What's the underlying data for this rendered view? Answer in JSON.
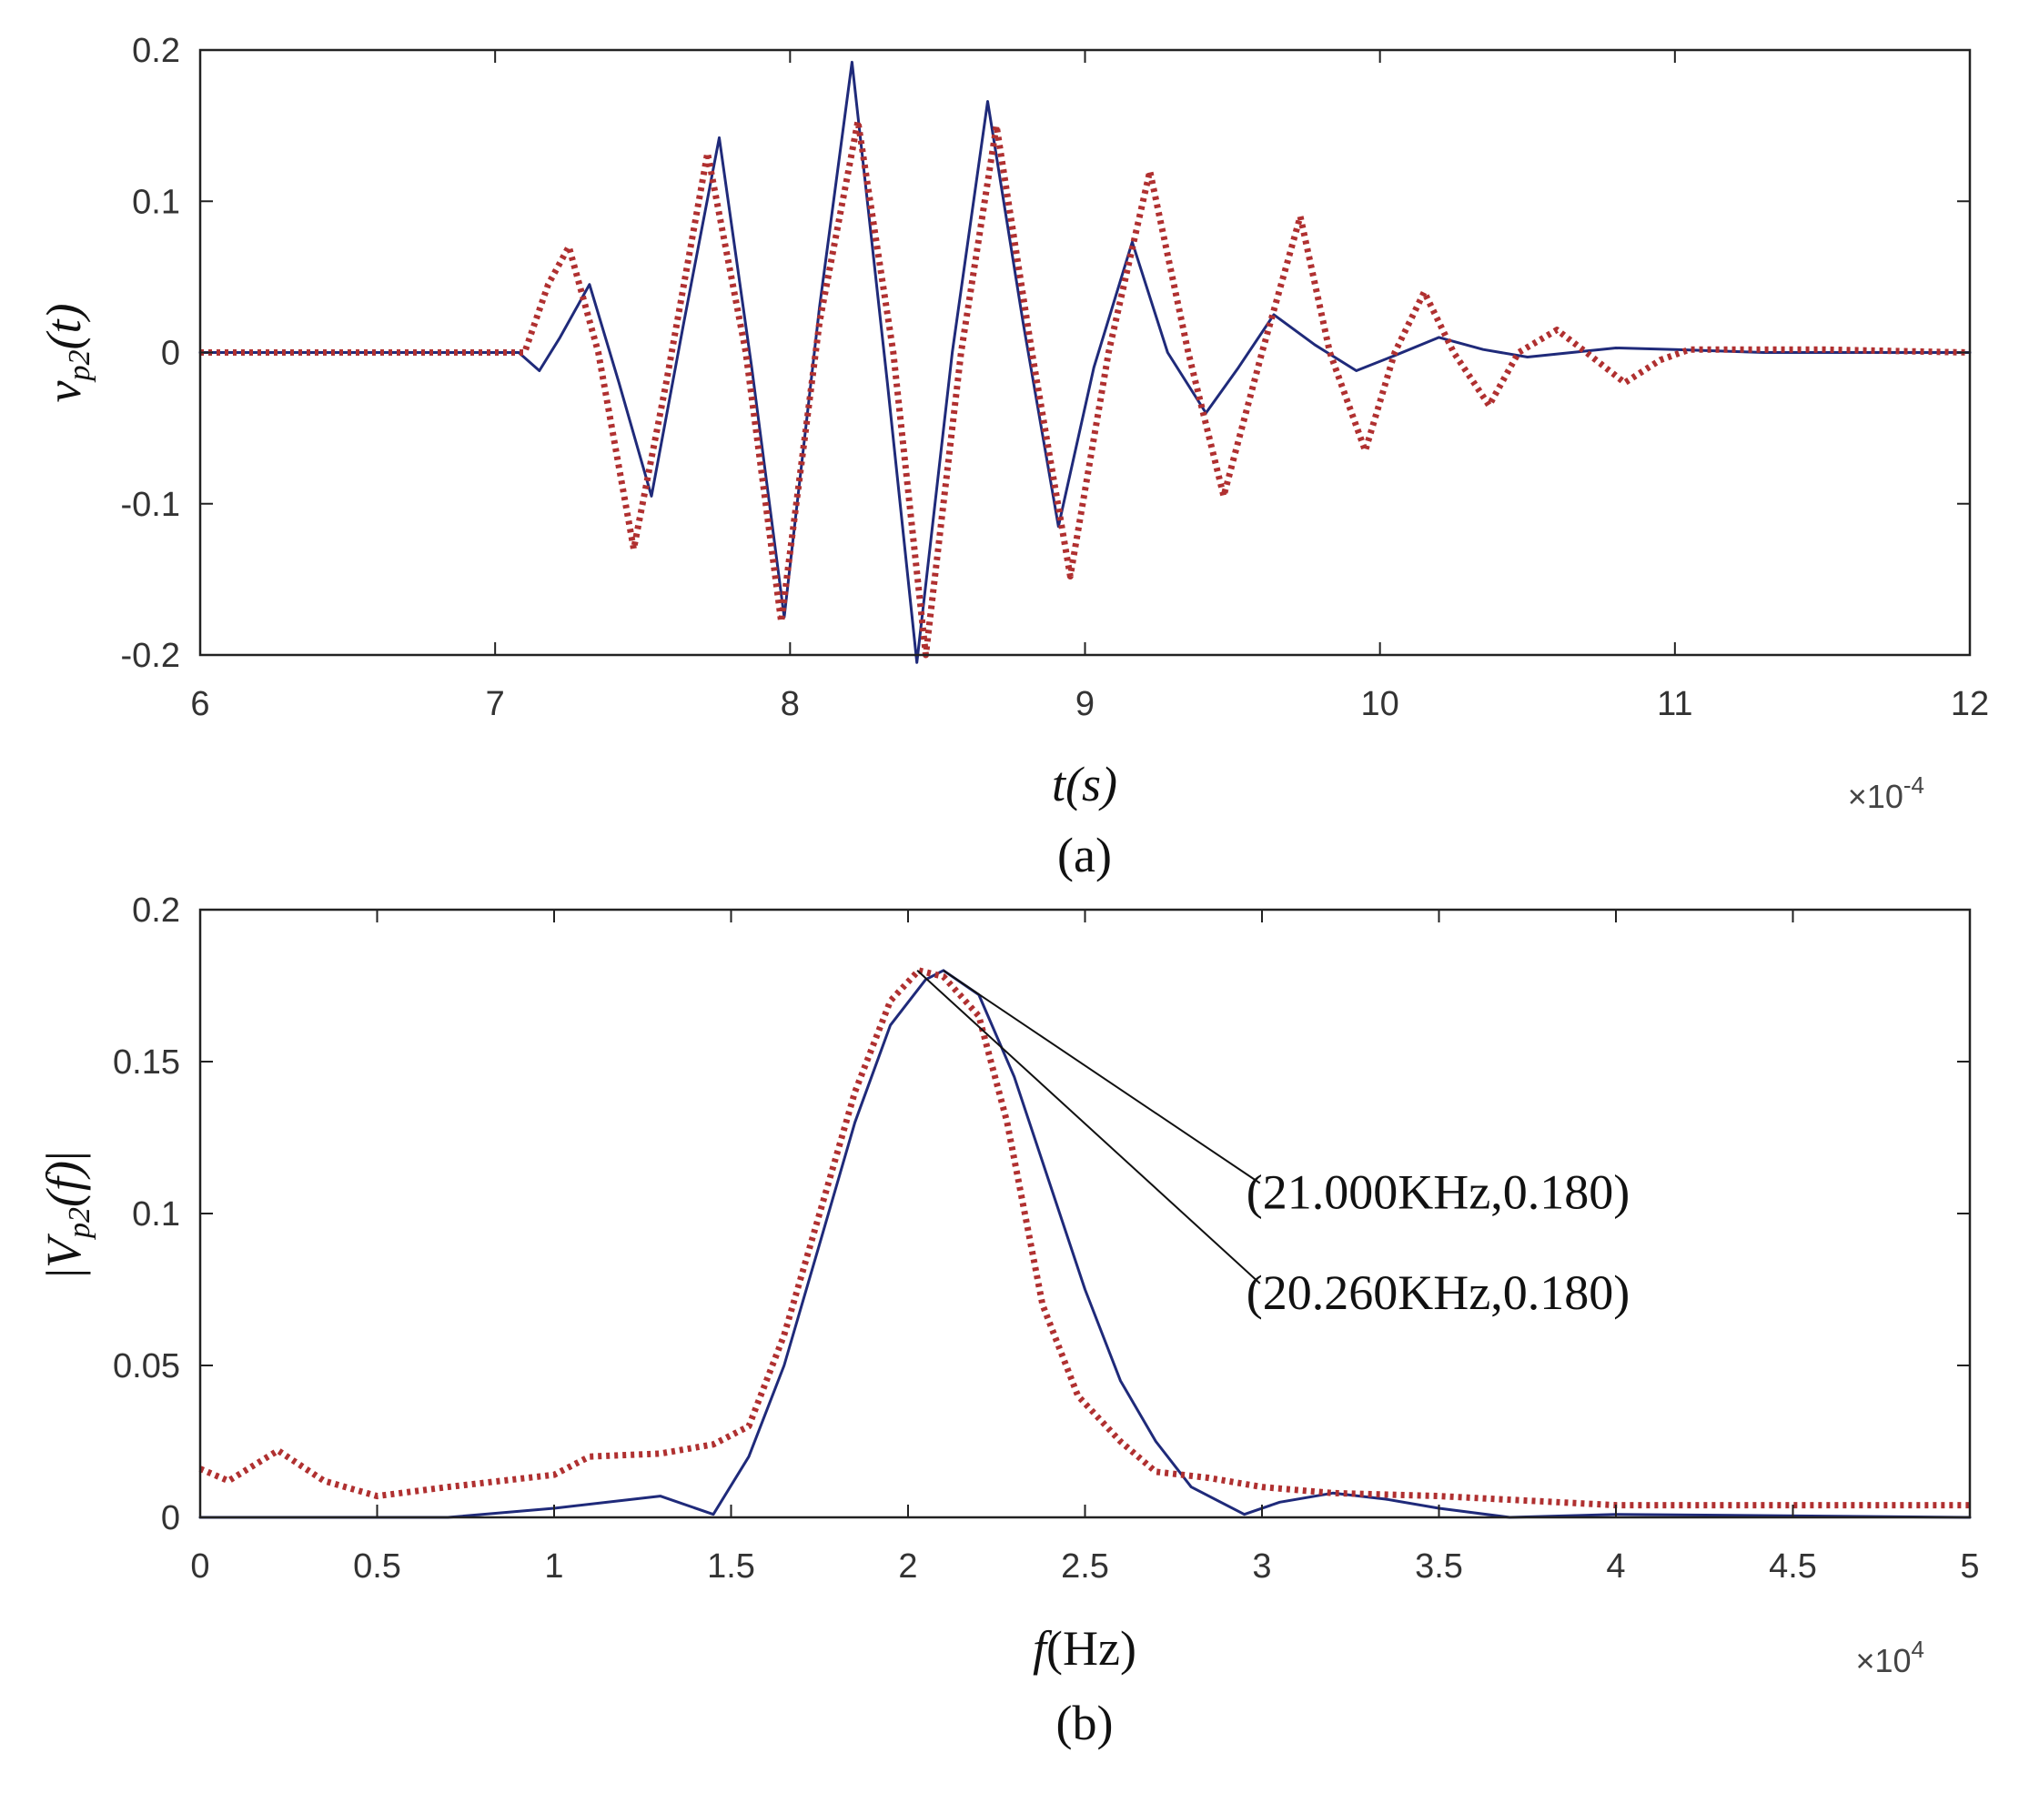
{
  "chart_data": [
    {
      "type": "line",
      "panel_label": "(a)",
      "xlabel": "t(s)",
      "ylabel": "v_p2(t)",
      "ylabel_base": "v",
      "ylabel_sub": "p2",
      "ylabel_arg": "(t)",
      "x_multiplier": "×10",
      "x_multiplier_exp": "-4",
      "xlim": [
        6,
        12
      ],
      "ylim": [
        -0.2,
        0.2
      ],
      "x_ticks": [
        6,
        7,
        8,
        9,
        10,
        11,
        12
      ],
      "x_tick_labels": [
        "6",
        "7",
        "8",
        "9",
        "10",
        "11",
        "12"
      ],
      "y_ticks": [
        -0.2,
        -0.1,
        0,
        0.1,
        0.2
      ],
      "y_tick_labels": [
        "-0.2",
        "-0.1",
        "0",
        "0.1",
        "0.2"
      ],
      "series": [
        {
          "name": "solid (blue)",
          "color": "#1f2a7a",
          "style": "solid",
          "points": [
            [
              6,
              0
            ],
            [
              7,
              0
            ],
            [
              7.08,
              0
            ],
            [
              7.15,
              -0.012
            ],
            [
              7.22,
              0.01
            ],
            [
              7.32,
              0.045
            ],
            [
              7.42,
              -0.02
            ],
            [
              7.53,
              -0.095
            ],
            [
              7.64,
              0.02
            ],
            [
              7.76,
              0.142
            ],
            [
              7.87,
              -0.01
            ],
            [
              7.98,
              -0.175
            ],
            [
              8.1,
              0.03
            ],
            [
              8.21,
              0.192
            ],
            [
              8.33,
              -0.02
            ],
            [
              8.43,
              -0.205
            ],
            [
              8.55,
              0.0
            ],
            [
              8.67,
              0.166
            ],
            [
              8.79,
              0.02
            ],
            [
              8.91,
              -0.115
            ],
            [
              9.03,
              -0.01
            ],
            [
              9.16,
              0.073
            ],
            [
              9.28,
              0.0
            ],
            [
              9.41,
              -0.04
            ],
            [
              9.52,
              -0.01
            ],
            [
              9.64,
              0.025
            ],
            [
              9.78,
              0.005
            ],
            [
              9.92,
              -0.012
            ],
            [
              10.05,
              -0.002
            ],
            [
              10.2,
              0.01
            ],
            [
              10.35,
              0.002
            ],
            [
              10.5,
              -0.003
            ],
            [
              10.8,
              0.003
            ],
            [
              11.0,
              0.002
            ],
            [
              11.3,
              0.0
            ],
            [
              12,
              0
            ]
          ]
        },
        {
          "name": "dotted (red)",
          "color": "#b03030",
          "style": "dotted",
          "points": [
            [
              6,
              0
            ],
            [
              7,
              0
            ],
            [
              7.1,
              0
            ],
            [
              7.18,
              0.045
            ],
            [
              7.25,
              0.07
            ],
            [
              7.35,
              0.0
            ],
            [
              7.47,
              -0.13
            ],
            [
              7.58,
              -0.02
            ],
            [
              7.72,
              0.132
            ],
            [
              7.85,
              0.0
            ],
            [
              7.97,
              -0.178
            ],
            [
              8.1,
              0.02
            ],
            [
              8.23,
              0.153
            ],
            [
              8.35,
              0.0
            ],
            [
              8.46,
              -0.2
            ],
            [
              8.58,
              0.0
            ],
            [
              8.7,
              0.15
            ],
            [
              8.82,
              0.0
            ],
            [
              8.95,
              -0.148
            ],
            [
              9.08,
              0.0
            ],
            [
              9.22,
              0.12
            ],
            [
              9.35,
              0.0
            ],
            [
              9.47,
              -0.095
            ],
            [
              9.6,
              0.0
            ],
            [
              9.73,
              0.09
            ],
            [
              9.83,
              0.0
            ],
            [
              9.95,
              -0.065
            ],
            [
              10.05,
              0.0
            ],
            [
              10.15,
              0.04
            ],
            [
              10.25,
              0.0
            ],
            [
              10.37,
              -0.035
            ],
            [
              10.47,
              0.0
            ],
            [
              10.6,
              0.015
            ],
            [
              10.7,
              0.0
            ],
            [
              10.83,
              -0.02
            ],
            [
              10.95,
              -0.005
            ],
            [
              11.05,
              0.002
            ],
            [
              11.5,
              0.002
            ],
            [
              12,
              0
            ]
          ]
        }
      ]
    },
    {
      "type": "line",
      "panel_label": "(b)",
      "xlabel": "f(Hz)",
      "xlabel_italic": "f",
      "xlabel_rest": "(Hz)",
      "ylabel": "|V_p2(f)|",
      "ylabel_base": "V",
      "ylabel_sub": "p2",
      "ylabel_arg": "(f)",
      "x_multiplier": "×10",
      "x_multiplier_exp": "4",
      "xlim": [
        0,
        5
      ],
      "ylim": [
        0,
        0.2
      ],
      "x_ticks": [
        0,
        0.5,
        1,
        1.5,
        2,
        2.5,
        3,
        3.5,
        4,
        4.5,
        5
      ],
      "x_tick_labels": [
        "0",
        "0.5",
        "1",
        "1.5",
        "2",
        "2.5",
        "3",
        "3.5",
        "4",
        "4.5",
        "5"
      ],
      "y_ticks": [
        0,
        0.05,
        0.1,
        0.15,
        0.2
      ],
      "y_tick_labels": [
        "0",
        "0.05",
        "0.1",
        "0.15",
        "0.2"
      ],
      "annotations": [
        {
          "text": "(21.000KHz,0.180)",
          "x": 2.1,
          "y": 0.18,
          "label_x": 3.02,
          "label_y": 0.107
        },
        {
          "text": "(20.260KHz,0.180)",
          "x": 2.026,
          "y": 0.18,
          "label_x": 3.02,
          "label_y": 0.074
        }
      ],
      "series": [
        {
          "name": "solid (blue)",
          "color": "#1f2a7a",
          "style": "solid",
          "points": [
            [
              0,
              0
            ],
            [
              0.7,
              0
            ],
            [
              1.0,
              0.003
            ],
            [
              1.3,
              0.007
            ],
            [
              1.45,
              0.001
            ],
            [
              1.55,
              0.02
            ],
            [
              1.65,
              0.05
            ],
            [
              1.75,
              0.09
            ],
            [
              1.85,
              0.13
            ],
            [
              1.95,
              0.162
            ],
            [
              2.05,
              0.177
            ],
            [
              2.1,
              0.18
            ],
            [
              2.2,
              0.172
            ],
            [
              2.3,
              0.145
            ],
            [
              2.4,
              0.11
            ],
            [
              2.5,
              0.075
            ],
            [
              2.6,
              0.045
            ],
            [
              2.7,
              0.025
            ],
            [
              2.8,
              0.01
            ],
            [
              2.95,
              0.001
            ],
            [
              3.05,
              0.005
            ],
            [
              3.2,
              0.008
            ],
            [
              3.35,
              0.006
            ],
            [
              3.5,
              0.003
            ],
            [
              3.7,
              0.0
            ],
            [
              4.0,
              0.001
            ],
            [
              5,
              0
            ]
          ]
        },
        {
          "name": "dotted (red)",
          "color": "#b03030",
          "style": "dotted",
          "points": [
            [
              0,
              0.016
            ],
            [
              0.08,
              0.012
            ],
            [
              0.22,
              0.022
            ],
            [
              0.35,
              0.012
            ],
            [
              0.5,
              0.007
            ],
            [
              0.7,
              0.01
            ],
            [
              1.0,
              0.014
            ],
            [
              1.1,
              0.02
            ],
            [
              1.3,
              0.021
            ],
            [
              1.45,
              0.024
            ],
            [
              1.55,
              0.03
            ],
            [
              1.65,
              0.06
            ],
            [
              1.75,
              0.1
            ],
            [
              1.85,
              0.14
            ],
            [
              1.95,
              0.17
            ],
            [
              2.03,
              0.18
            ],
            [
              2.1,
              0.178
            ],
            [
              2.2,
              0.165
            ],
            [
              2.28,
              0.13
            ],
            [
              2.38,
              0.07
            ],
            [
              2.48,
              0.04
            ],
            [
              2.6,
              0.025
            ],
            [
              2.7,
              0.015
            ],
            [
              2.85,
              0.013
            ],
            [
              3.0,
              0.01
            ],
            [
              3.2,
              0.008
            ],
            [
              3.5,
              0.007
            ],
            [
              4.0,
              0.004
            ],
            [
              4.5,
              0.004
            ],
            [
              5,
              0.004
            ]
          ]
        }
      ]
    }
  ]
}
